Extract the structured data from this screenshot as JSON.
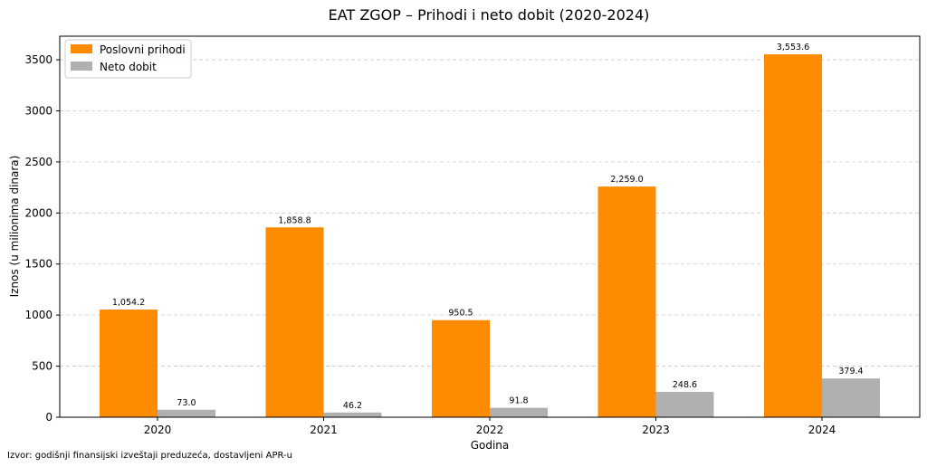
{
  "chart_data": {
    "type": "bar",
    "title": "EAT ZGOP – Prihodi i neto dobit (2020-2024)",
    "xlabel": "Godina",
    "ylabel": "Iznos (u milionima dinara)",
    "categories": [
      "2020",
      "2021",
      "2022",
      "2023",
      "2024"
    ],
    "series": [
      {
        "name": "Poslovni prihodi",
        "color": "#ff8c00",
        "values": [
          1054.2,
          1858.8,
          950.5,
          2259.0,
          3553.6
        ],
        "labels": [
          "1,054.2",
          "1,858.8",
          "950.5",
          "2,259.0",
          "3,553.6"
        ]
      },
      {
        "name": "Neto dobit",
        "color": "#b0b0b0",
        "values": [
          73.0,
          46.2,
          91.8,
          248.6,
          379.4
        ],
        "labels": [
          "73.0",
          "46.2",
          "91.8",
          "248.6",
          "379.4"
        ]
      }
    ],
    "ylim": [
      0,
      3731
    ],
    "yticks": [
      0,
      500,
      1000,
      1500,
      2000,
      2500,
      3000,
      3500
    ],
    "grid": true,
    "legend_position": "top-left"
  },
  "footer": {
    "source": "Izvor: godišnji finansijski izveštaji preduzeća, dostavljeni APR-u"
  }
}
